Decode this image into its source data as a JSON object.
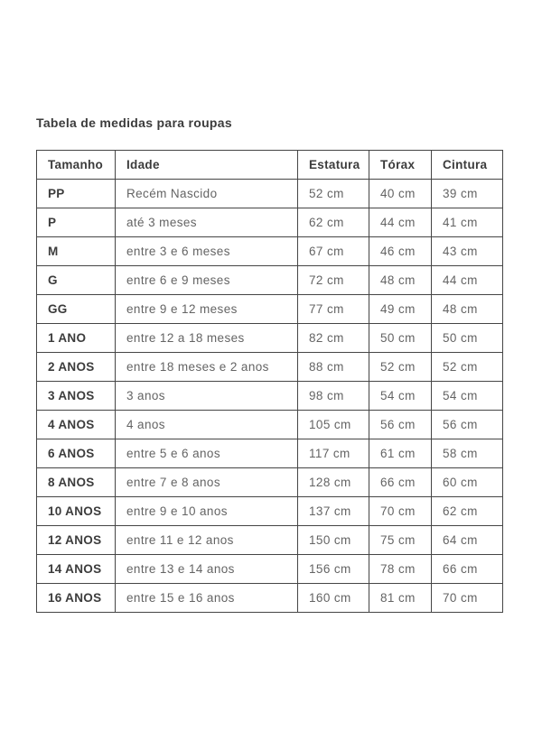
{
  "page": {
    "title": "Tabela de medidas para roupas"
  },
  "table": {
    "columns": [
      "Tamanho",
      "Idade",
      "Estatura",
      "Tórax",
      "Cintura"
    ],
    "rows": [
      [
        "PP",
        "Recém Nascido",
        "52 cm",
        "40 cm",
        "39 cm"
      ],
      [
        "P",
        "até 3 meses",
        "62 cm",
        "44 cm",
        "41 cm"
      ],
      [
        "M",
        "entre 3 e 6 meses",
        "67 cm",
        "46 cm",
        "43 cm"
      ],
      [
        "G",
        "entre 6 e 9 meses",
        "72 cm",
        "48 cm",
        "44 cm"
      ],
      [
        "GG",
        "entre 9 e 12 meses",
        "77 cm",
        "49 cm",
        "48 cm"
      ],
      [
        "1 ANO",
        "entre 12 a 18 meses",
        "82 cm",
        "50 cm",
        "50 cm"
      ],
      [
        "2 ANOS",
        "entre 18 meses e 2 anos",
        "88 cm",
        "52 cm",
        "52 cm"
      ],
      [
        "3 ANOS",
        "3 anos",
        "98 cm",
        "54 cm",
        "54 cm"
      ],
      [
        "4 ANOS",
        "4 anos",
        "105 cm",
        "56 cm",
        "56 cm"
      ],
      [
        "6 ANOS",
        "entre 5 e 6 anos",
        "117 cm",
        "61 cm",
        "58 cm"
      ],
      [
        "8 ANOS",
        "entre 7 e 8 anos",
        "128 cm",
        "66 cm",
        "60 cm"
      ],
      [
        "10 ANOS",
        "entre 9 e 10 anos",
        "137 cm",
        "70 cm",
        "62 cm"
      ],
      [
        "12 ANOS",
        "entre 11 e 12 anos",
        "150 cm",
        "75 cm",
        "64 cm"
      ],
      [
        "14 ANOS",
        "entre 13 e 14 anos",
        "156 cm",
        "78 cm",
        "66 cm"
      ],
      [
        "16 ANOS",
        "entre 15 e 16 anos",
        "160 cm",
        "81 cm",
        "70 cm"
      ]
    ]
  },
  "colors": {
    "background": "#ffffff",
    "border": "#454545",
    "heading_text": "#3c3c3c",
    "body_text": "#646464"
  }
}
